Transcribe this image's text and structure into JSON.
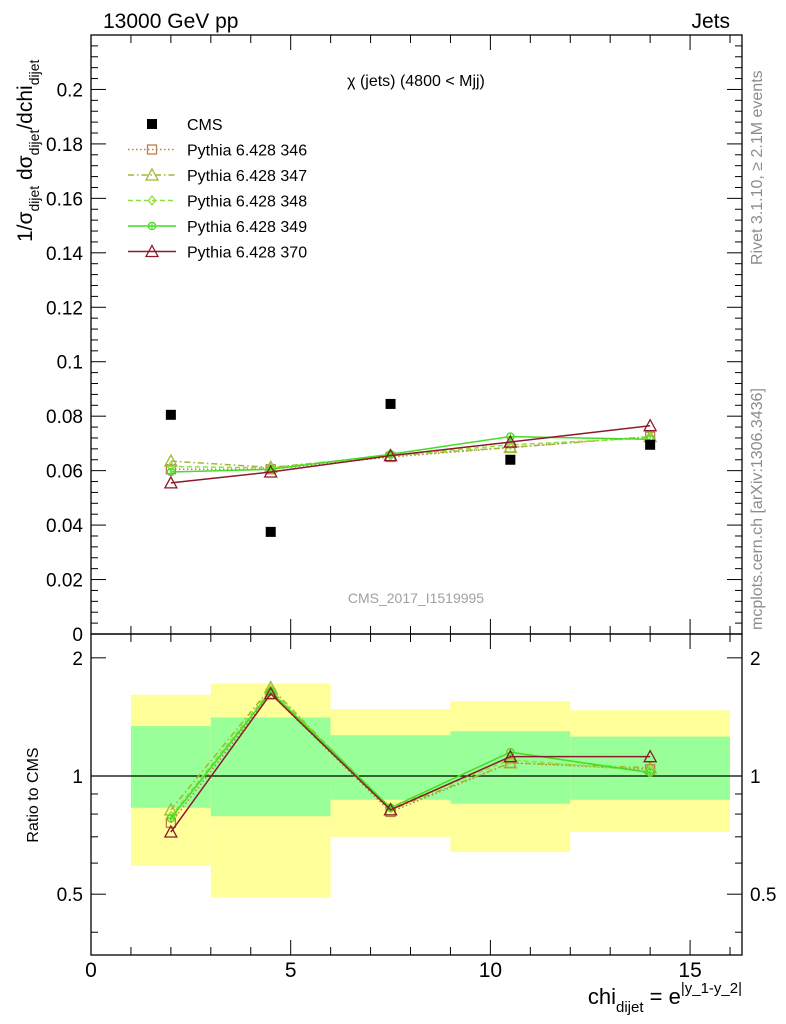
{
  "header": {
    "left": "13000 GeV pp",
    "right": "Jets",
    "side_top": "Rivet 3.1.10, ≥ 2.1M events",
    "side_bottom": "mcplots.cern.ch [arXiv:1306.3436]"
  },
  "chart_data": [
    {
      "type": "scatter",
      "title": "χ (jets) (4800 < Mjj)",
      "watermark": "CMS_2017_I1519995",
      "ylabel": "1/σdijet dσdijet/dchidijet",
      "xlim": [
        0,
        16.3
      ],
      "ylim": [
        0,
        0.22
      ],
      "yticks": [
        0,
        0.02,
        0.04,
        0.06,
        0.08,
        0.1,
        0.12,
        0.14,
        0.16,
        0.18,
        0.2
      ],
      "ytick_labels": [
        "0",
        "0.02",
        "0.04",
        "0.06",
        "0.08",
        "0.1",
        "0.12",
        "0.14",
        "0.16",
        "0.18",
        "0.2"
      ],
      "legend_position": "top-left",
      "data": {
        "name": "CMS",
        "x": [
          2,
          4.5,
          7.5,
          10.5,
          14
        ],
        "y": [
          0.0805,
          0.0375,
          0.0845,
          0.064,
          0.0695
        ]
      },
      "series": [
        {
          "name": "Pythia 6.428 346",
          "color": "#b87f4a",
          "dash": "dotted",
          "marker": "square",
          "x": [
            2,
            4.5,
            7.5,
            10.5,
            14
          ],
          "y": [
            0.0605,
            0.0605,
            0.065,
            0.0685,
            0.0725
          ]
        },
        {
          "name": "Pythia 6.428 347",
          "color": "#a0b830",
          "dash": "dashdot",
          "marker": "triangle",
          "x": [
            2,
            4.5,
            7.5,
            10.5,
            14
          ],
          "y": [
            0.0635,
            0.0612,
            0.0655,
            0.0685,
            0.0725
          ]
        },
        {
          "name": "Pythia 6.428 348",
          "color": "#90e040",
          "dash": "dashed",
          "marker": "diamond",
          "x": [
            2,
            4.5,
            7.5,
            10.5,
            14
          ],
          "y": [
            0.0615,
            0.061,
            0.0655,
            0.0695,
            0.072
          ]
        },
        {
          "name": "Pythia 6.428 349",
          "color": "#44dd22",
          "dash": "solid",
          "marker": "circle",
          "x": [
            2,
            4.5,
            7.5,
            10.5,
            14
          ],
          "y": [
            0.0595,
            0.0605,
            0.066,
            0.0725,
            0.0715
          ]
        },
        {
          "name": "Pythia 6.428 370",
          "color": "#8b1a2a",
          "dash": "solid",
          "marker": "triangle",
          "x": [
            2,
            4.5,
            7.5,
            10.5,
            14
          ],
          "y": [
            0.0555,
            0.0595,
            0.0655,
            0.0705,
            0.0765
          ]
        }
      ]
    },
    {
      "type": "line",
      "ylabel": "Ratio to CMS",
      "xlabel": "chidijet = e|y_1-y_2|",
      "ylim": [
        0.35,
        2.3
      ],
      "ylog": true,
      "yticks": [
        0.5,
        1,
        2
      ],
      "ytick_labels": [
        "0.5",
        "1",
        "2"
      ],
      "xticks": [
        0,
        5,
        10,
        15
      ],
      "xtick_labels": [
        "0",
        "5",
        "10",
        "15"
      ],
      "bands": [
        {
          "x0": 1,
          "x1": 3,
          "inner": [
            0.83,
            1.34
          ],
          "outer": [
            0.59,
            1.61
          ]
        },
        {
          "x0": 3,
          "x1": 6,
          "inner": [
            0.79,
            1.41
          ],
          "outer": [
            0.49,
            1.72
          ]
        },
        {
          "x0": 6,
          "x1": 9,
          "inner": [
            0.87,
            1.27
          ],
          "outer": [
            0.7,
            1.48
          ]
        },
        {
          "x0": 9,
          "x1": 12,
          "inner": [
            0.85,
            1.3
          ],
          "outer": [
            0.64,
            1.55
          ]
        },
        {
          "x0": 12,
          "x1": 16,
          "inner": [
            0.87,
            1.26
          ],
          "outer": [
            0.72,
            1.47
          ]
        }
      ],
      "series": [
        {
          "name": "Pythia 6.428 346",
          "x": [
            2,
            4.5,
            7.5,
            10.5,
            14
          ],
          "y": [
            0.76,
            1.62,
            0.81,
            1.08,
            1.04
          ]
        },
        {
          "name": "Pythia 6.428 347",
          "x": [
            2,
            4.5,
            7.5,
            10.5,
            14
          ],
          "y": [
            0.82,
            1.68,
            0.82,
            1.08,
            1.05
          ]
        },
        {
          "name": "Pythia 6.428 348",
          "x": [
            2,
            4.5,
            7.5,
            10.5,
            14
          ],
          "y": [
            0.79,
            1.66,
            0.83,
            1.1,
            1.03
          ]
        },
        {
          "name": "Pythia 6.428 349",
          "x": [
            2,
            4.5,
            7.5,
            10.5,
            14
          ],
          "y": [
            0.78,
            1.64,
            0.83,
            1.15,
            1.02
          ]
        },
        {
          "name": "Pythia 6.428 370",
          "x": [
            2,
            4.5,
            7.5,
            10.5,
            14
          ],
          "y": [
            0.72,
            1.62,
            0.82,
            1.12,
            1.12
          ]
        }
      ]
    }
  ]
}
